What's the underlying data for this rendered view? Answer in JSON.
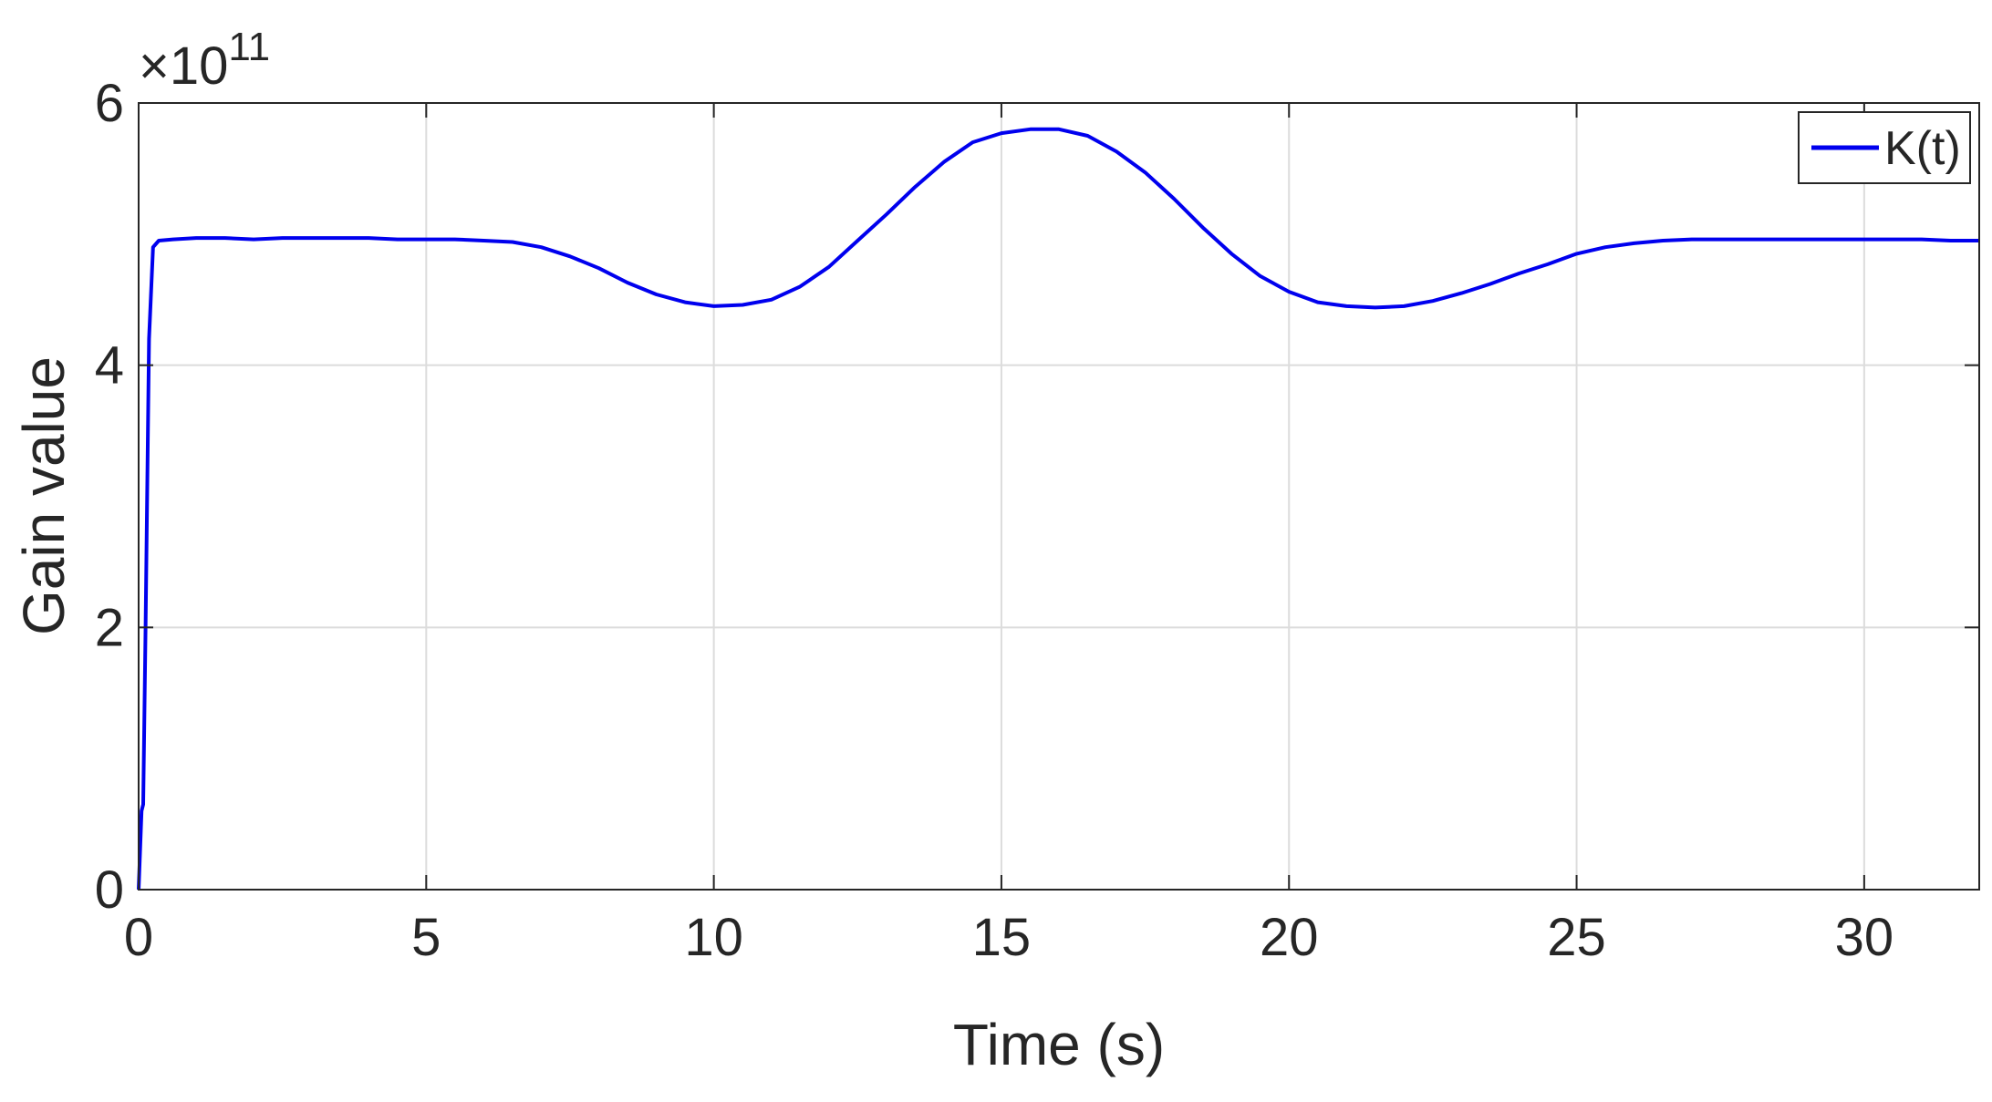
{
  "chart_data": {
    "type": "line",
    "xlabel": "Time (s)",
    "ylabel": "Gain value",
    "y_exponent_label": "×10",
    "y_exponent_power": "11",
    "xlim": [
      0,
      32
    ],
    "ylim": [
      0,
      6
    ],
    "x_ticks": [
      0,
      5,
      10,
      15,
      20,
      25,
      30
    ],
    "x_tick_labels": [
      "0",
      "5",
      "10",
      "15",
      "20",
      "25",
      "30"
    ],
    "y_ticks": [
      0,
      2,
      4,
      6
    ],
    "y_tick_labels": [
      "0",
      "2",
      "4",
      "6"
    ],
    "grid": true,
    "legend_position": "top-right",
    "colors": {
      "line": "#0000ee",
      "grid": "#dcdcdc",
      "axes": "#262626"
    },
    "series": [
      {
        "name": "K(t)",
        "x": [
          0,
          0.05,
          0.08,
          0.12,
          0.18,
          0.25,
          0.35,
          0.6,
          1,
          1.5,
          2,
          2.5,
          3,
          3.5,
          4,
          4.5,
          5,
          5.5,
          6,
          6.5,
          7,
          7.5,
          8,
          8.5,
          9,
          9.5,
          10,
          10.5,
          11,
          11.5,
          12,
          12.5,
          13,
          13.5,
          14,
          14.5,
          15,
          15.5,
          16,
          16.5,
          17,
          17.5,
          18,
          18.5,
          19,
          19.5,
          20,
          20.5,
          21,
          21.5,
          22,
          22.5,
          23,
          23.5,
          24,
          24.5,
          25,
          25.5,
          26,
          26.5,
          27,
          27.5,
          28,
          28.5,
          29,
          29.5,
          30,
          30.5,
          31,
          31.5,
          32
        ],
        "values": [
          0,
          0.6,
          0.65,
          2.0,
          4.2,
          4.9,
          4.95,
          4.96,
          4.97,
          4.97,
          4.96,
          4.97,
          4.97,
          4.97,
          4.97,
          4.96,
          4.96,
          4.96,
          4.95,
          4.94,
          4.9,
          4.83,
          4.74,
          4.63,
          4.54,
          4.48,
          4.45,
          4.46,
          4.5,
          4.6,
          4.75,
          4.95,
          5.15,
          5.36,
          5.55,
          5.7,
          5.77,
          5.8,
          5.8,
          5.75,
          5.63,
          5.47,
          5.27,
          5.05,
          4.85,
          4.68,
          4.56,
          4.48,
          4.45,
          4.44,
          4.45,
          4.49,
          4.55,
          4.62,
          4.7,
          4.77,
          4.85,
          4.9,
          4.93,
          4.95,
          4.96,
          4.96,
          4.96,
          4.96,
          4.96,
          4.96,
          4.96,
          4.96,
          4.96,
          4.95,
          4.95
        ]
      }
    ]
  }
}
